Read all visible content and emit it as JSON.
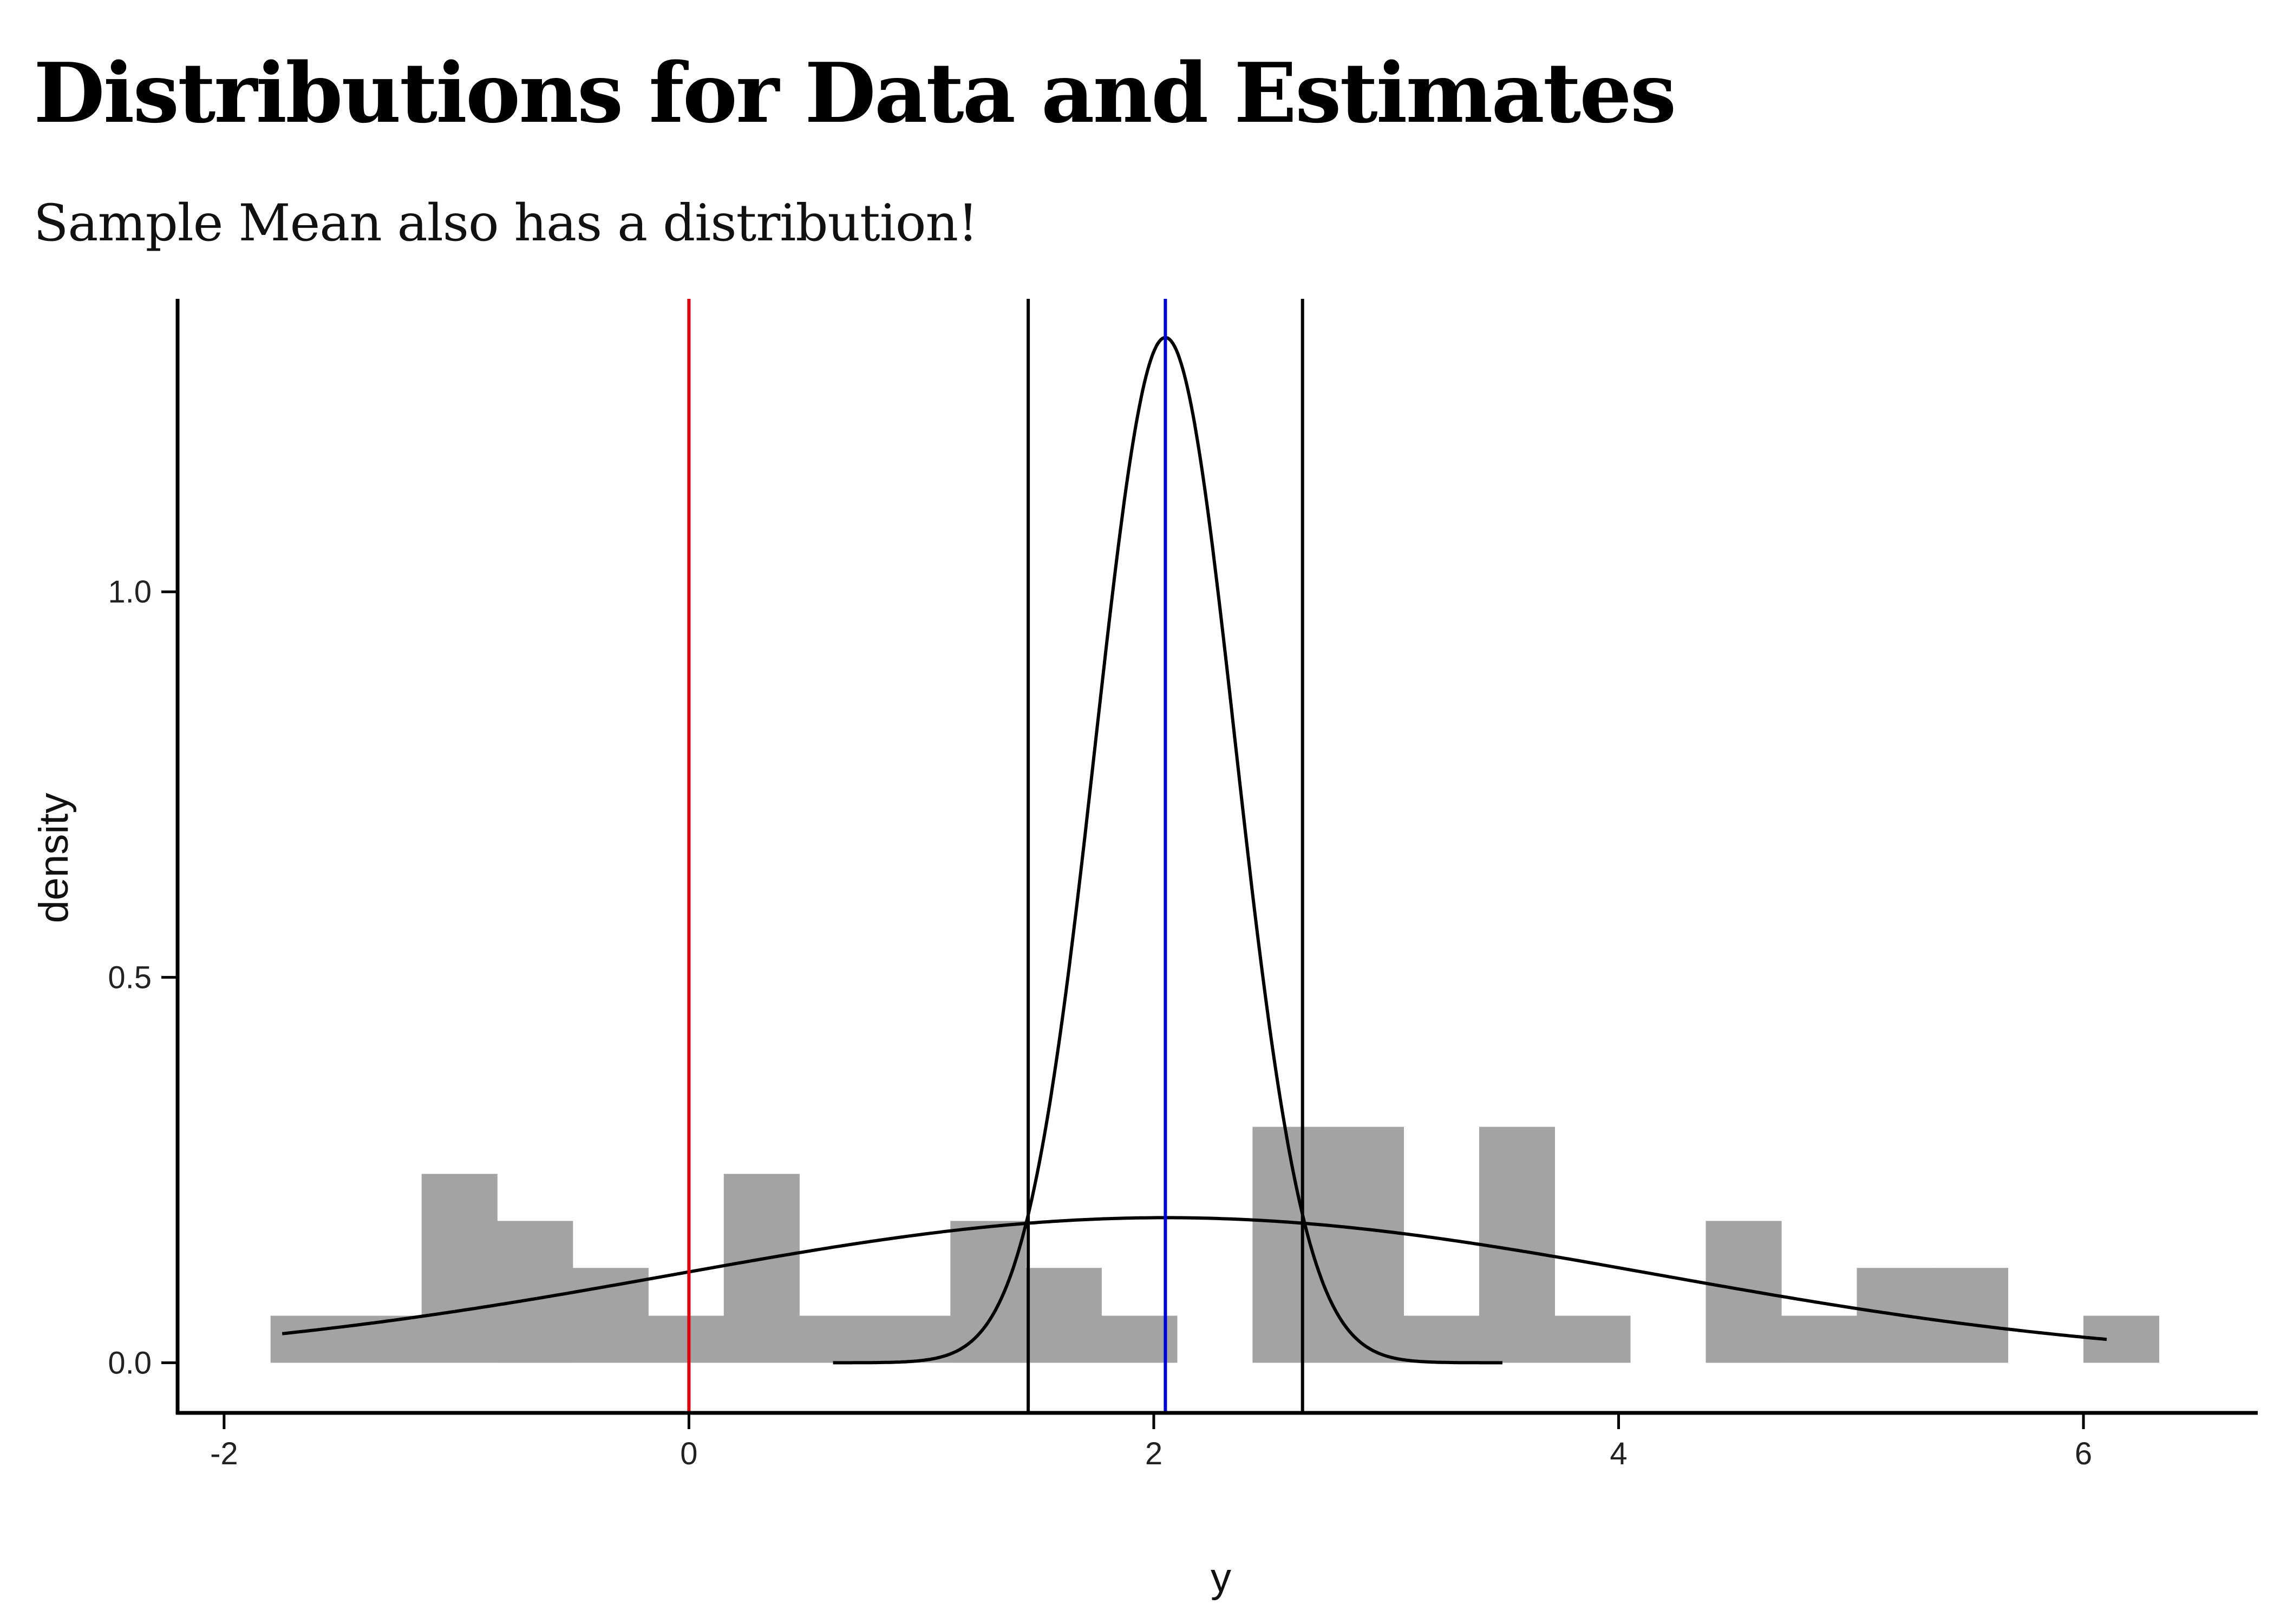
{
  "chart_data": {
    "type": "bar",
    "title": "Distributions for Data and Estimates",
    "subtitle": "Sample Mean also has a distribution!",
    "xlabel": "y",
    "ylabel": "density",
    "xlim": [
      -2.2,
      6.75
    ],
    "ylim": [
      -0.065,
      1.38
    ],
    "x_ticks": [
      {
        "value": -2,
        "label": "-2"
      },
      {
        "value": 0,
        "label": "0"
      },
      {
        "value": 2,
        "label": "2"
      },
      {
        "value": 4,
        "label": "4"
      },
      {
        "value": 6,
        "label": "6"
      }
    ],
    "y_ticks": [
      {
        "value": 0,
        "label": "0.0"
      },
      {
        "value": 0.5,
        "label": "0.5"
      },
      {
        "value": 1,
        "label": "1.0"
      }
    ],
    "grid": false,
    "histogram": {
      "color": "#a3a3a3",
      "bin_width": 0.325,
      "bins": [
        {
          "x0": -1.8,
          "density": 0.061
        },
        {
          "x0": -1.475,
          "density": 0.061
        },
        {
          "x0": -1.15,
          "density": 0.245
        },
        {
          "x0": -0.825,
          "density": 0.184
        },
        {
          "x0": -0.5,
          "density": 0.123
        },
        {
          "x0": -0.175,
          "density": 0.061
        },
        {
          "x0": 0.15,
          "density": 0.245
        },
        {
          "x0": 0.475,
          "density": 0.061
        },
        {
          "x0": 0.8,
          "density": 0.061
        },
        {
          "x0": 1.125,
          "density": 0.184
        },
        {
          "x0": 1.45,
          "density": 0.123
        },
        {
          "x0": 1.775,
          "density": 0.061
        },
        {
          "x0": 2.1,
          "density": 0.0
        },
        {
          "x0": 2.425,
          "density": 0.306
        },
        {
          "x0": 2.75,
          "density": 0.306
        },
        {
          "x0": 3.075,
          "density": 0.061
        },
        {
          "x0": 3.4,
          "density": 0.306
        },
        {
          "x0": 3.725,
          "density": 0.061
        },
        {
          "x0": 4.05,
          "density": 0.0
        },
        {
          "x0": 4.375,
          "density": 0.184
        },
        {
          "x0": 4.7,
          "density": 0.061
        },
        {
          "x0": 5.025,
          "density": 0.123
        },
        {
          "x0": 5.35,
          "density": 0.123
        },
        {
          "x0": 5.675,
          "density": 0.0
        },
        {
          "x0": 6.0,
          "density": 0.061
        }
      ]
    },
    "curves": [
      {
        "kind": "normal_density",
        "mean": 2.05,
        "sd": 2.12,
        "x_range": [
          -1.75,
          6.1
        ],
        "color": "#000000"
      },
      {
        "kind": "normal_density",
        "mean": 2.05,
        "sd": 0.3,
        "x_range": [
          0.62,
          3.5
        ],
        "color": "#000000"
      }
    ],
    "vlines": [
      {
        "x": 0,
        "color": "#e0000b"
      },
      {
        "x": 1.46,
        "color": "#000000"
      },
      {
        "x": 2.05,
        "color": "#0000d8"
      },
      {
        "x": 2.64,
        "color": "#000000"
      }
    ]
  }
}
